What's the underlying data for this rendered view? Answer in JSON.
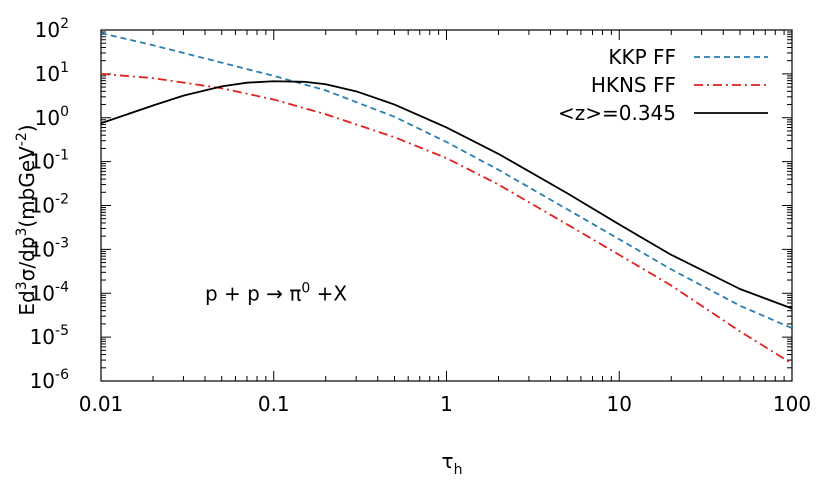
{
  "chart_data": {
    "type": "line",
    "xlabel": "τ",
    "xlabel_sub": "h",
    "ylabel_parts": {
      "a": "Ed",
      "a_sup": "3",
      "b": "σ/dp",
      "b_sup": "3",
      "c": "(mbGeV",
      "c_sup": "-2",
      "d": ")"
    },
    "x_scale": "log",
    "y_scale": "log",
    "xlim": [
      0.01,
      100
    ],
    "ylim": [
      1e-06,
      100
    ],
    "grid": false,
    "legend_position": "top-right",
    "x_ticks": [
      {
        "value": 0.01,
        "label": "0.01"
      },
      {
        "value": 0.1,
        "label": "0.1"
      },
      {
        "value": 1,
        "label": "1"
      },
      {
        "value": 10,
        "label": "10"
      },
      {
        "value": 100,
        "label": "100"
      }
    ],
    "y_ticks": [
      {
        "value": 100,
        "base": "10",
        "exp": "2"
      },
      {
        "value": 10,
        "base": "10",
        "exp": "1"
      },
      {
        "value": 1,
        "base": "10",
        "exp": "0"
      },
      {
        "value": 0.1,
        "base": "10",
        "exp": "-1"
      },
      {
        "value": 0.01,
        "base": "10",
        "exp": "-2"
      },
      {
        "value": 0.001,
        "base": "10",
        "exp": "-3"
      },
      {
        "value": 0.0001,
        "base": "10",
        "exp": "-4"
      },
      {
        "value": 1e-05,
        "base": "10",
        "exp": "-5"
      },
      {
        "value": 1e-06,
        "base": "10",
        "exp": "-6"
      }
    ],
    "annotation": {
      "text": "p + p → π",
      "sup": "0",
      "tail": " +X",
      "x": 0.04,
      "y": 0.0001
    },
    "series": [
      {
        "name": "KKP FF",
        "color": "#2b7fb0",
        "dash": "dashed",
        "x": [
          0.01,
          0.02,
          0.05,
          0.1,
          0.2,
          0.5,
          1,
          2,
          5,
          10,
          20,
          50,
          100
        ],
        "y": [
          85,
          45,
          18,
          9,
          4.2,
          1.05,
          0.28,
          0.065,
          0.0082,
          0.0017,
          0.00035,
          5.2e-05,
          1.6e-05
        ]
      },
      {
        "name": "HKNS FF",
        "color": "#e0211b",
        "dash": "dashdot",
        "x": [
          0.01,
          0.02,
          0.05,
          0.1,
          0.2,
          0.5,
          1,
          2,
          5,
          10,
          20,
          50,
          100
        ],
        "y": [
          10,
          8,
          4.7,
          2.6,
          1.2,
          0.36,
          0.12,
          0.03,
          0.0037,
          0.00075,
          0.00015,
          1.35e-05,
          2.5e-06
        ]
      },
      {
        "name": "<z>=0.345",
        "color": "#000000",
        "dash": "solid",
        "x": [
          0.01,
          0.02,
          0.03,
          0.05,
          0.07,
          0.1,
          0.15,
          0.2,
          0.3,
          0.5,
          1,
          2,
          5,
          10,
          20,
          50,
          100
        ],
        "y": [
          0.75,
          1.9,
          3.2,
          5.2,
          6.3,
          6.8,
          6.6,
          5.8,
          4.0,
          2.0,
          0.6,
          0.15,
          0.019,
          0.0037,
          0.00075,
          0.000125,
          4.5e-05
        ]
      }
    ]
  }
}
